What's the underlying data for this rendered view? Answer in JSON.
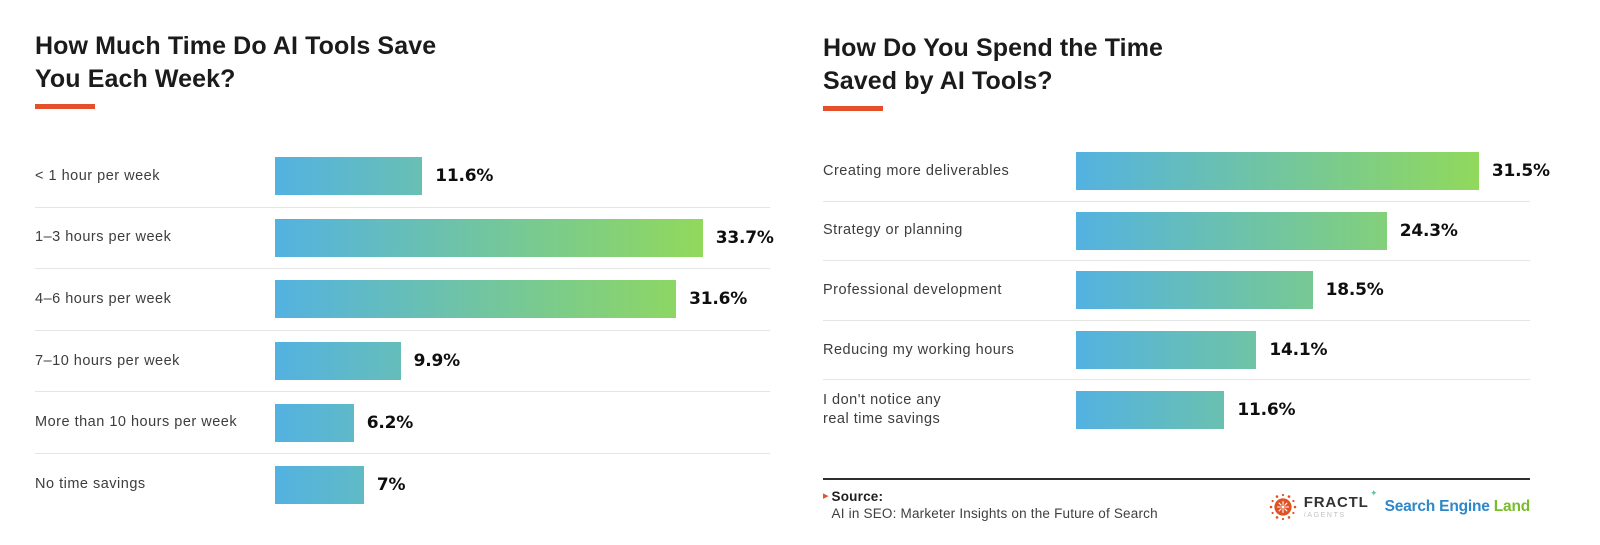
{
  "accent_color": "#E5502A",
  "divider_color": "#e5e5e5",
  "chart_data": [
    {
      "type": "bar",
      "orientation": "horizontal",
      "title": "How Much Time Do AI Tools Save You Each Week?",
      "title_lines": [
        "How Much Time Do AI Tools Save",
        "You Each Week?"
      ],
      "categories": [
        "< 1 hour per week",
        "1–3 hours per week",
        "4–6 hours per week",
        "7–10 hours per week",
        "More than 10 hours per week",
        "No time savings"
      ],
      "values": [
        11.6,
        33.7,
        31.6,
        9.9,
        6.2,
        7
      ],
      "value_labels": [
        "11.6%",
        "33.7%",
        "31.6%",
        "9.9%",
        "6.2%",
        "7%"
      ],
      "xlim": [
        0,
        39
      ],
      "grid": "row-dividers",
      "legend": "none",
      "bar_gradient": [
        "#53B2E1",
        "#91D95C"
      ]
    },
    {
      "type": "bar",
      "orientation": "horizontal",
      "title": "How Do You Spend the Time Saved by AI Tools?",
      "title_lines": [
        "How Do You Spend the Time",
        "Saved by AI Tools?"
      ],
      "categories": [
        "Creating more deliverables",
        "Strategy or planning",
        "Professional development",
        "Reducing my working hours",
        "I don't notice any\nreal time savings"
      ],
      "values": [
        31.5,
        24.3,
        18.5,
        14.1,
        11.6
      ],
      "value_labels": [
        "31.5%",
        "24.3%",
        "18.5%",
        "14.1%",
        "11.6%"
      ],
      "xlim": [
        0,
        35.5
      ],
      "grid": "row-dividers",
      "legend": "none",
      "bar_gradient": [
        "#53B2E1",
        "#91D95C"
      ]
    }
  ],
  "footer": {
    "source_label": "Source:",
    "source_marker": "▸",
    "source_text": "AI in SEO: Marketer Insights on the Future of Search",
    "fractl_name": "FRACTL",
    "fractl_sub": "/AGENTS",
    "fractl_sparkle": "✦",
    "sel_part1": "Search Engine",
    "sel_part2": "Land",
    "sel_blue": "#2D87C8",
    "sel_green": "#7ABD2C",
    "fractl_orange": "#E05122"
  }
}
